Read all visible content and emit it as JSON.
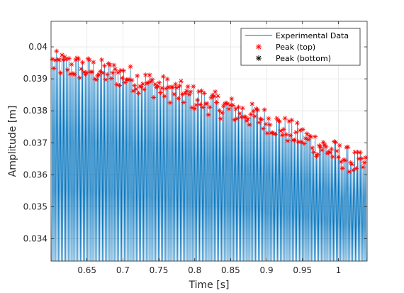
{
  "chart_data": {
    "type": "line",
    "xlabel": "Time [s]",
    "ylabel": "Amplitude [m]",
    "xlim": [
      0.6,
      1.04
    ],
    "ylim": [
      0.0333,
      0.0408
    ],
    "grid": true,
    "legend_position": "top-right",
    "xticks": [
      0.65,
      0.7,
      0.75,
      0.8,
      0.85,
      0.9,
      0.95,
      1
    ],
    "xtick_labels": [
      "0.65",
      "0.7",
      "0.75",
      "0.8",
      "0.85",
      "0.9",
      "0.95",
      "1"
    ],
    "yticks": [
      0.034,
      0.035,
      0.036,
      0.037,
      0.038,
      0.039,
      0.04
    ],
    "ytick_labels": [
      "0.034",
      "0.035",
      "0.036",
      "0.037",
      "0.038",
      "0.039",
      "0.04"
    ],
    "series": [
      {
        "name": "Experimental Data",
        "color": "#0072bd",
        "style": "line"
      },
      {
        "name": "Peak (top)",
        "color": "#ff0000",
        "style": "marker-asterisk"
      },
      {
        "name": "Peak (bottom)",
        "color": "#000000",
        "style": "marker-asterisk"
      }
    ],
    "trend": {
      "x": [
        0.6,
        0.7,
        0.8,
        0.9,
        1.04
      ],
      "y": [
        0.0395,
        0.0391,
        0.0384,
        0.0377,
        0.0362
      ]
    },
    "signal_base_level": 0.0333,
    "peak_noise_amplitude": 0.0004
  }
}
